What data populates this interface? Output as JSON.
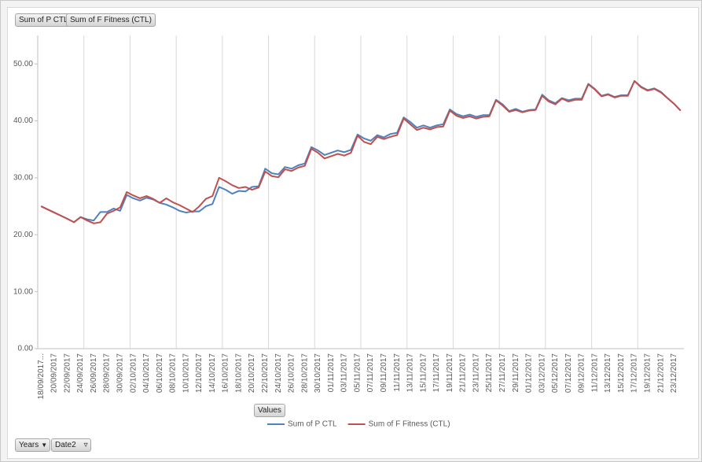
{
  "field_buttons": {
    "values": [
      "Sum of P CTL",
      "Sum of F Fitness (CTL)"
    ],
    "legend": "Values",
    "axis": [
      "Years",
      "Date2"
    ]
  },
  "chart_data": {
    "type": "line",
    "categories": [
      "18/09/2017...",
      null,
      "20/09/2017",
      null,
      "22/09/2017",
      null,
      "24/09/2017",
      null,
      "26/09/2017",
      null,
      "28/09/2017",
      null,
      "30/09/2017",
      null,
      "02/10/2017",
      null,
      "04/10/2017",
      null,
      "06/10/2017",
      null,
      "08/10/2017",
      null,
      "10/10/2017",
      null,
      "12/10/2017",
      null,
      "14/10/2017",
      null,
      "16/10/2017",
      null,
      "18/10/2017",
      null,
      "20/10/2017",
      null,
      "22/10/2017",
      null,
      "24/10/2017",
      null,
      "26/10/2017",
      null,
      "28/10/2017",
      null,
      "30/10/2017",
      null,
      "01/11/2017",
      null,
      "03/11/2017",
      null,
      "05/11/2017",
      null,
      "07/11/2017",
      null,
      "09/11/2017",
      null,
      "11/11/2017",
      null,
      "13/11/2017",
      null,
      "15/11/2017",
      null,
      "17/11/2017",
      null,
      "19/11/2017",
      null,
      "21/11/2017",
      null,
      "23/11/2017",
      null,
      "25/11/2017",
      null,
      "27/11/2017",
      null,
      "29/11/2017",
      null,
      "01/12/2017",
      null,
      "03/12/2017",
      null,
      "05/12/2017",
      null,
      "07/12/2017",
      null,
      "09/12/2017",
      null,
      "11/12/2017",
      null,
      "13/12/2017",
      null,
      "15/12/2017",
      null,
      "17/12/2017",
      null,
      "19/12/2017",
      null,
      "21/12/2017",
      null,
      "23/12/2017",
      null
    ],
    "series": [
      {
        "name": "Sum of P CTL",
        "color": "#4f81bd",
        "values": [
          25.0,
          24.45,
          23.9,
          23.35,
          22.8,
          22.2,
          23.1,
          22.7,
          22.5,
          24.0,
          24.0,
          24.6,
          24.2,
          27.0,
          26.4,
          26.0,
          26.5,
          26.2,
          25.6,
          25.3,
          24.8,
          24.2,
          23.9,
          24.1,
          24.1,
          25.0,
          25.4,
          28.4,
          27.9,
          27.2,
          27.7,
          27.6,
          28.4,
          28.5,
          31.6,
          30.8,
          30.6,
          31.9,
          31.6,
          32.2,
          32.5,
          35.4,
          34.8,
          34.0,
          34.4,
          34.8,
          34.5,
          34.9,
          37.6,
          36.9,
          36.5,
          37.5,
          37.1,
          37.7,
          37.9,
          40.6,
          39.8,
          38.8,
          39.2,
          38.8,
          39.2,
          39.4,
          42.0,
          41.2,
          40.8,
          41.1,
          40.7,
          41.0,
          41.0,
          43.7,
          42.9,
          41.7,
          42.1,
          41.6,
          41.9,
          42.0,
          44.6,
          43.6,
          43.1,
          44.0,
          43.6,
          43.9,
          43.9,
          46.5,
          45.6,
          44.4,
          44.7,
          44.2,
          44.5,
          44.5,
          47.0,
          46.0,
          45.4,
          45.7,
          45.1,
          44.0,
          43.0,
          41.8
        ]
      },
      {
        "name": "Sum of F Fitness (CTL)",
        "color": "#c0504d",
        "values": [
          25.0,
          24.45,
          23.9,
          23.35,
          22.8,
          22.2,
          23.1,
          22.5,
          22.0,
          22.2,
          23.7,
          24.2,
          24.8,
          27.5,
          26.9,
          26.4,
          26.8,
          26.3,
          25.6,
          26.4,
          25.7,
          25.2,
          24.6,
          24.0,
          25.0,
          26.3,
          26.8,
          30.0,
          29.4,
          28.7,
          28.2,
          28.4,
          27.9,
          28.3,
          31.1,
          30.3,
          30.1,
          31.5,
          31.2,
          31.8,
          32.1,
          35.1,
          34.4,
          33.4,
          33.8,
          34.2,
          33.9,
          34.4,
          37.4,
          36.3,
          35.9,
          37.2,
          36.8,
          37.2,
          37.5,
          40.4,
          39.4,
          38.4,
          38.8,
          38.5,
          38.9,
          39.0,
          41.8,
          40.9,
          40.5,
          40.8,
          40.4,
          40.7,
          40.8,
          43.6,
          42.7,
          41.6,
          41.9,
          41.5,
          41.8,
          41.9,
          44.4,
          43.4,
          42.9,
          43.9,
          43.4,
          43.7,
          43.7,
          46.4,
          45.5,
          44.3,
          44.6,
          44.1,
          44.4,
          44.4,
          47.0,
          45.9,
          45.3,
          45.6,
          45.0,
          44.0,
          43.0,
          41.8
        ]
      }
    ],
    "ylim": [
      0,
      55
    ],
    "yticks": [
      {
        "value": 0,
        "label": "0.00"
      },
      {
        "value": 10,
        "label": "10.00"
      },
      {
        "value": 20,
        "label": "20.00"
      },
      {
        "value": 30,
        "label": "30.00"
      },
      {
        "value": 40,
        "label": "40.00"
      },
      {
        "value": 50,
        "label": "50.00"
      }
    ],
    "legend": "bottom"
  }
}
